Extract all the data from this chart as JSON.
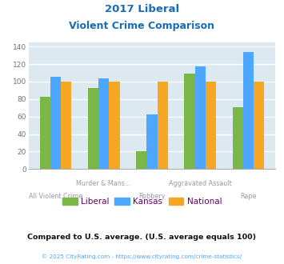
{
  "title_line1": "2017 Liberal",
  "title_line2": "Violent Crime Comparison",
  "cat_labels": [
    "All Violent Crime",
    "Murder & Mans...",
    "Robbery",
    "Aggravated Assault",
    "Rape"
  ],
  "liberal": [
    83,
    93,
    20,
    109,
    71
  ],
  "kansas": [
    105,
    104,
    62,
    117,
    134
  ],
  "national": [
    100,
    100,
    100,
    100,
    100
  ],
  "liberal_color": "#7ab648",
  "kansas_color": "#4da6ff",
  "national_color": "#f5a623",
  "ylim": [
    0,
    145
  ],
  "yticks": [
    0,
    20,
    40,
    60,
    80,
    100,
    120,
    140
  ],
  "title_color": "#1a6cb5",
  "plot_bg": "#dce9f0",
  "grid_color": "#ffffff",
  "footer_text": "Compared to U.S. average. (U.S. average equals 100)",
  "copyright_text": "© 2025 CityRating.com - https://www.cityrating.com/crime-statistics/",
  "copyright_color": "#4da6ff",
  "legend_labels": [
    "Liberal",
    "Kansas",
    "National"
  ],
  "legend_text_color": "#660066",
  "footer_color": "#111111",
  "bar_width": 0.22
}
